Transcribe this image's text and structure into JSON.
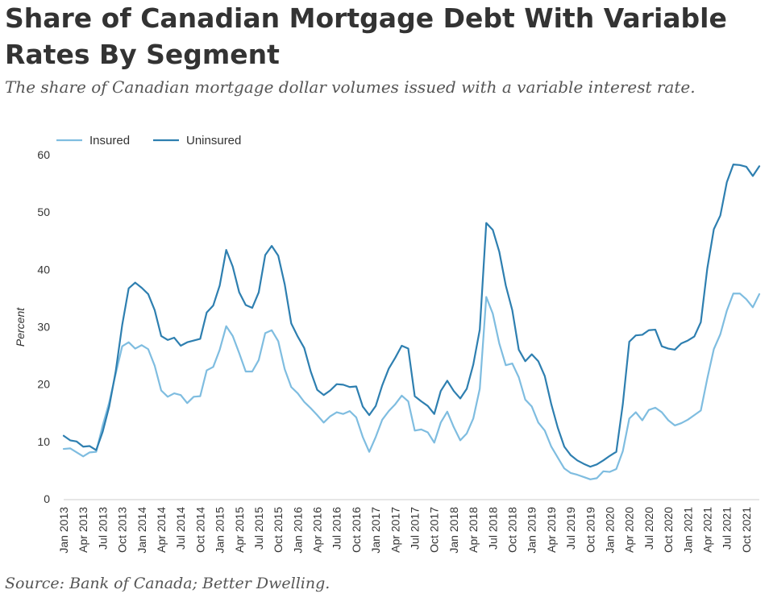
{
  "title": "Share of Canadian Mortgage Debt With Variable Rates By Segment",
  "subtitle": "The share of Canadian mortgage dollar volumes issued with a variable interest rate.",
  "source": "Source: Bank of Canada; Better Dwelling.",
  "chart_data": {
    "type": "line",
    "ylabel": "Percent",
    "xlabel": "",
    "ylim": [
      0,
      60
    ],
    "yticks": [
      0,
      10,
      20,
      30,
      40,
      50,
      60
    ],
    "grid": false,
    "legend_position": "top-left",
    "x_start": "Jan 2013",
    "x_tick_labels": [
      "Jan 2013",
      "Apr 2013",
      "Jul 2013",
      "Oct 2013",
      "Jan 2014",
      "Apr 2014",
      "Jul 2014",
      "Oct 2014",
      "Jan 2015",
      "Apr 2015",
      "Jul 2015",
      "Oct 2015",
      "Jan 2016",
      "Apr 2016",
      "Jul 2016",
      "Oct 2016",
      "Jan 2017",
      "Apr 2017",
      "Jul 2017",
      "Oct 2017",
      "Jan 2018",
      "Apr 2018",
      "Jul 2018",
      "Oct 2018",
      "Jan 2019",
      "Apr 2019",
      "Jul 2019",
      "Oct 2019",
      "Jan 2020",
      "Apr 2020",
      "Jul 2020",
      "Oct 2020",
      "Jan 2021",
      "Apr 2021",
      "Jul 2021",
      "Oct 2021"
    ],
    "series": [
      {
        "name": "Insured",
        "color": "#7fbde0",
        "values": [
          8.7,
          8.8,
          8.1,
          7.4,
          8.1,
          8.2,
          12.8,
          16.8,
          21.8,
          26.6,
          27.3,
          26.2,
          26.8,
          26.1,
          23.2,
          18.9,
          17.8,
          18.4,
          18.1,
          16.7,
          17.8,
          17.9,
          22.4,
          23.0,
          26.0,
          30.1,
          28.4,
          25.4,
          22.2,
          22.2,
          24.2,
          28.9,
          29.4,
          27.5,
          22.6,
          19.5,
          18.4,
          16.9,
          15.8,
          14.6,
          13.3,
          14.4,
          15.1,
          14.8,
          15.3,
          14.2,
          10.8,
          8.2,
          10.8,
          13.8,
          15.3,
          16.5,
          18.0,
          17.0,
          11.9,
          12.1,
          11.6,
          9.8,
          13.3,
          15.2,
          12.5,
          10.2,
          11.4,
          14.0,
          19.2,
          35.2,
          32.3,
          27.1,
          23.3,
          23.6,
          21.2,
          17.3,
          16.1,
          13.3,
          11.9,
          9.1,
          7.2,
          5.3,
          4.5,
          4.2,
          3.8,
          3.4,
          3.6,
          4.8,
          4.7,
          5.2,
          8.3,
          14.0,
          15.1,
          13.7,
          15.5,
          15.9,
          15.1,
          13.7,
          12.8,
          13.2,
          13.8,
          14.6,
          15.4,
          21.0,
          26.1,
          28.7,
          32.8,
          35.8,
          35.8,
          34.8,
          33.4,
          35.7
        ]
      },
      {
        "name": "Uninsured",
        "color": "#2e7fb0",
        "values": [
          11.0,
          10.2,
          10.0,
          9.1,
          9.2,
          8.5,
          11.7,
          16.1,
          22.2,
          30.3,
          36.7,
          37.7,
          36.8,
          35.7,
          32.9,
          28.4,
          27.7,
          28.1,
          26.7,
          27.3,
          27.6,
          27.9,
          32.5,
          33.7,
          37.2,
          43.4,
          40.5,
          36.0,
          33.8,
          33.3,
          36.0,
          42.5,
          44.1,
          42.4,
          37.4,
          30.6,
          28.3,
          26.3,
          22.2,
          19.0,
          18.1,
          18.9,
          20.0,
          19.9,
          19.5,
          19.6,
          16.1,
          14.6,
          16.2,
          19.8,
          22.7,
          24.6,
          26.7,
          26.2,
          17.9,
          17.0,
          16.2,
          14.8,
          18.8,
          20.6,
          18.8,
          17.5,
          19.2,
          23.4,
          29.5,
          48.1,
          46.9,
          43.1,
          37.2,
          32.9,
          26.0,
          24.0,
          25.2,
          24.0,
          21.4,
          16.5,
          12.4,
          9.1,
          7.6,
          6.7,
          6.1,
          5.6,
          6.0,
          6.7,
          7.5,
          8.2,
          16.5,
          27.4,
          28.5,
          28.6,
          29.4,
          29.5,
          26.6,
          26.2,
          26.0,
          27.1,
          27.6,
          28.3,
          30.8,
          40.2,
          47.0,
          49.4,
          55.2,
          58.3,
          58.2,
          57.9,
          56.3,
          58.0
        ]
      }
    ]
  }
}
